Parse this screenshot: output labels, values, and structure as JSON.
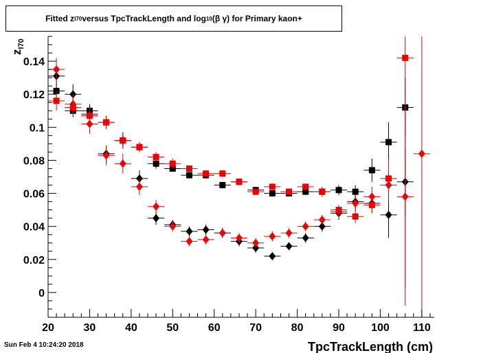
{
  "title": {
    "prefix": "Fitted  z",
    "z_sub": "I70",
    "mid": "  versus TpcTrackLength and log",
    "log_sub": "10",
    "suffix": " (β γ) for Primary kaon+"
  },
  "footer_date": "Sun Feb  4 10:24:20 2018",
  "chart_data": {
    "type": "scatter",
    "xlabel": "TpcTrackLength (cm)",
    "ylabel": "z",
    "ylabel_sub": "I70",
    "xlim": [
      20,
      113
    ],
    "ylim": [
      -0.015,
      0.155
    ],
    "xticks": [
      20,
      30,
      40,
      50,
      60,
      70,
      80,
      90,
      100,
      110
    ],
    "xtick_labels": [
      "20",
      "30",
      "40",
      "50",
      "60",
      "70",
      "80",
      "90",
      "100",
      "110"
    ],
    "yticks": [
      0,
      0.02,
      0.04,
      0.06,
      0.08,
      0.1,
      0.12,
      0.14
    ],
    "ytick_labels": [
      "0",
      "0.02",
      "0.04",
      "0.06",
      "0.08",
      "0.1",
      "0.12",
      "0.14"
    ],
    "grid": false,
    "colors": {
      "black": "#000000",
      "red": "#ee0000"
    },
    "series": [
      {
        "marker": "square",
        "color": "#000000",
        "x": [
          22,
          26,
          30,
          34,
          38,
          42,
          46,
          50,
          54,
          58,
          62,
          66,
          70,
          74,
          78,
          82,
          86,
          90,
          94,
          98,
          102,
          106
        ],
        "y": [
          0.122,
          0.11,
          0.11,
          0.103,
          0.092,
          0.088,
          0.078,
          0.075,
          0.071,
          0.071,
          0.065,
          0.067,
          0.062,
          0.06,
          0.06,
          0.061,
          0.061,
          0.062,
          0.061,
          0.074,
          0.091,
          0.112
        ],
        "err": [
          0.004,
          0.004,
          0.004,
          0.004,
          0.003,
          0.003,
          0.003,
          0.002,
          0.002,
          0.002,
          0.002,
          0.002,
          0.002,
          0.002,
          0.002,
          0.002,
          0.002,
          0.003,
          0.004,
          0.007,
          0.012,
          0.018
        ]
      },
      {
        "marker": "diamond",
        "color": "#000000",
        "x": [
          22,
          26,
          30,
          34,
          38,
          42,
          46,
          50,
          54,
          58,
          62,
          66,
          70,
          74,
          78,
          82,
          86,
          90,
          94,
          98,
          102,
          106
        ],
        "y": [
          0.131,
          0.12,
          0.108,
          0.084,
          0.092,
          0.069,
          0.045,
          0.041,
          0.037,
          0.038,
          0.036,
          0.031,
          0.027,
          0.022,
          0.028,
          0.033,
          0.04,
          0.048,
          0.055,
          0.054,
          0.047,
          0.067
        ],
        "err": [
          0.006,
          0.006,
          0.005,
          0.005,
          0.005,
          0.005,
          0.004,
          0.003,
          0.003,
          0.003,
          0.003,
          0.003,
          0.003,
          0.002,
          0.002,
          0.003,
          0.003,
          0.004,
          0.005,
          0.006,
          0.014,
          0.02
        ]
      },
      {
        "marker": "square",
        "color": "#ee0000",
        "x": [
          22,
          26,
          30,
          34,
          38,
          42,
          46,
          50,
          54,
          58,
          62,
          66,
          70,
          74,
          78,
          82,
          86,
          90,
          94,
          98,
          102,
          106
        ],
        "y": [
          0.116,
          0.112,
          0.107,
          0.103,
          0.092,
          0.088,
          0.082,
          0.078,
          0.075,
          0.072,
          0.072,
          0.067,
          0.061,
          0.064,
          0.061,
          0.064,
          0.061,
          0.05,
          0.046,
          0.053,
          0.069,
          0.142
        ],
        "err": [
          0.006,
          0.005,
          0.005,
          0.004,
          0.004,
          0.003,
          0.003,
          0.003,
          0.002,
          0.002,
          0.002,
          0.002,
          0.002,
          0.002,
          0.002,
          0.002,
          0.003,
          0.003,
          0.004,
          0.005,
          0.012,
          0.15
        ]
      },
      {
        "marker": "diamond",
        "color": "#ee0000",
        "x": [
          22,
          26,
          30,
          34,
          38,
          42,
          46,
          50,
          54,
          58,
          62,
          66,
          70,
          74,
          78,
          82,
          86,
          90,
          94,
          98,
          102,
          106,
          110
        ],
        "y": [
          0.135,
          0.114,
          0.102,
          0.083,
          0.078,
          0.064,
          0.052,
          0.04,
          0.031,
          0.032,
          0.036,
          0.033,
          0.03,
          0.034,
          0.036,
          0.04,
          0.044,
          0.049,
          0.054,
          0.058,
          0.065,
          0.058,
          0.084
        ],
        "err": [
          0.007,
          0.006,
          0.006,
          0.006,
          0.006,
          0.005,
          0.004,
          0.003,
          0.003,
          0.003,
          0.003,
          0.003,
          0.003,
          0.003,
          0.003,
          0.003,
          0.003,
          0.004,
          0.005,
          0.006,
          0.01,
          0.055,
          0.3
        ]
      }
    ]
  }
}
